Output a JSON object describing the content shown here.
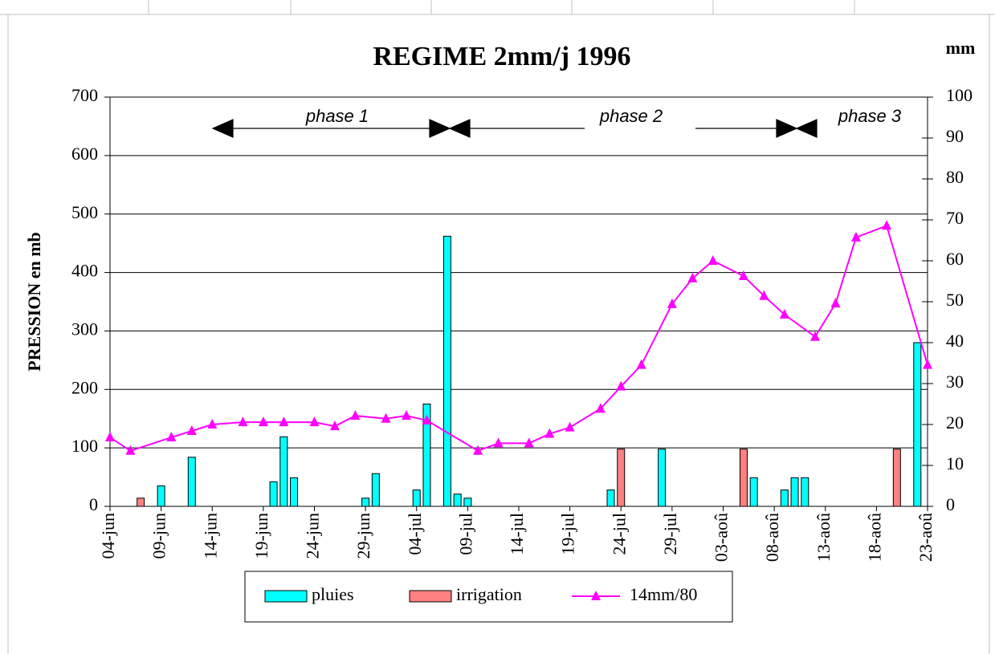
{
  "chart_data": {
    "type": "bar_line",
    "title": "REGIME 2mm/j  1996",
    "y_label": "PRESSION en mb",
    "y2_label": "mm",
    "annotations": [
      "phase 1",
      "phase 2",
      "phase 3"
    ],
    "categories": [
      "04-jun",
      null,
      null,
      null,
      null,
      "09-jun",
      null,
      null,
      null,
      null,
      "14-jun",
      null,
      null,
      null,
      null,
      "19-jun",
      null,
      null,
      null,
      null,
      "24-jun",
      null,
      null,
      null,
      null,
      "29-jun",
      null,
      null,
      null,
      null,
      "04-jul",
      null,
      null,
      null,
      null,
      "09-jul",
      null,
      null,
      null,
      null,
      "14-jul",
      null,
      null,
      null,
      null,
      "19-jul",
      null,
      null,
      null,
      null,
      "24-jul",
      null,
      null,
      null,
      null,
      "29-jul",
      null,
      null,
      null,
      null,
      "03-aoû",
      null,
      null,
      null,
      null,
      "08-aoû",
      null,
      null,
      null,
      null,
      "13-aoû",
      null,
      null,
      null,
      null,
      "18-aoû",
      null,
      null,
      null,
      null,
      "23-aoû"
    ],
    "series": [
      {
        "name": "pluies",
        "type": "bar",
        "axis": "y2",
        "color": "#00ffff",
        "values": [
          null,
          null,
          null,
          null,
          null,
          5,
          null,
          null,
          12,
          null,
          null,
          null,
          null,
          null,
          null,
          null,
          6,
          17,
          7,
          null,
          null,
          null,
          null,
          null,
          null,
          2,
          8,
          null,
          null,
          null,
          4,
          25,
          null,
          66,
          3,
          2,
          null,
          null,
          null,
          null,
          null,
          null,
          null,
          null,
          null,
          null,
          null,
          null,
          null,
          4,
          null,
          null,
          null,
          null,
          14,
          null,
          null,
          null,
          null,
          null,
          null,
          null,
          null,
          7,
          null,
          null,
          4,
          7,
          7,
          null,
          null,
          null,
          null,
          null,
          null,
          null,
          null,
          null,
          null,
          40,
          null
        ]
      },
      {
        "name": "irrigation",
        "type": "bar",
        "axis": "y2",
        "color": "#ff8080",
        "values": [
          null,
          null,
          null,
          2,
          null,
          null,
          null,
          null,
          null,
          null,
          null,
          null,
          null,
          null,
          null,
          null,
          null,
          null,
          null,
          null,
          null,
          null,
          null,
          null,
          null,
          null,
          null,
          null,
          null,
          null,
          null,
          null,
          null,
          null,
          null,
          null,
          null,
          null,
          null,
          null,
          null,
          null,
          null,
          null,
          null,
          null,
          null,
          null,
          null,
          null,
          14,
          null,
          null,
          null,
          null,
          null,
          null,
          null,
          null,
          null,
          null,
          null,
          14,
          null,
          null,
          null,
          null,
          null,
          null,
          null,
          null,
          null,
          null,
          null,
          null,
          null,
          null,
          14,
          null,
          null,
          null
        ]
      },
      {
        "name": "14mm/80",
        "type": "line",
        "color": "#ff00ff",
        "marker": "triangle",
        "connect_gaps": true,
        "values": [
          118,
          null,
          95,
          null,
          null,
          null,
          118,
          null,
          129,
          null,
          140,
          null,
          null,
          144,
          null,
          144,
          null,
          144,
          null,
          null,
          144,
          null,
          137,
          null,
          155,
          null,
          null,
          150,
          null,
          155,
          null,
          147,
          null,
          null,
          null,
          null,
          95,
          null,
          108,
          null,
          null,
          108,
          null,
          124,
          null,
          135,
          null,
          null,
          167,
          null,
          205,
          null,
          242,
          null,
          null,
          346,
          null,
          390,
          null,
          420,
          null,
          null,
          394,
          null,
          360,
          null,
          328,
          null,
          null,
          290,
          null,
          347,
          null,
          460,
          null,
          null,
          480,
          null,
          null,
          null,
          242
        ]
      }
    ],
    "ylim": [
      0,
      700
    ],
    "yticks": [
      0,
      100,
      200,
      300,
      400,
      500,
      600,
      700
    ],
    "y2lim": [
      0,
      100
    ],
    "y2ticks": [
      0,
      10,
      20,
      30,
      40,
      50,
      60,
      70,
      80,
      90,
      100
    ],
    "grid": true,
    "legend": "bottom"
  }
}
